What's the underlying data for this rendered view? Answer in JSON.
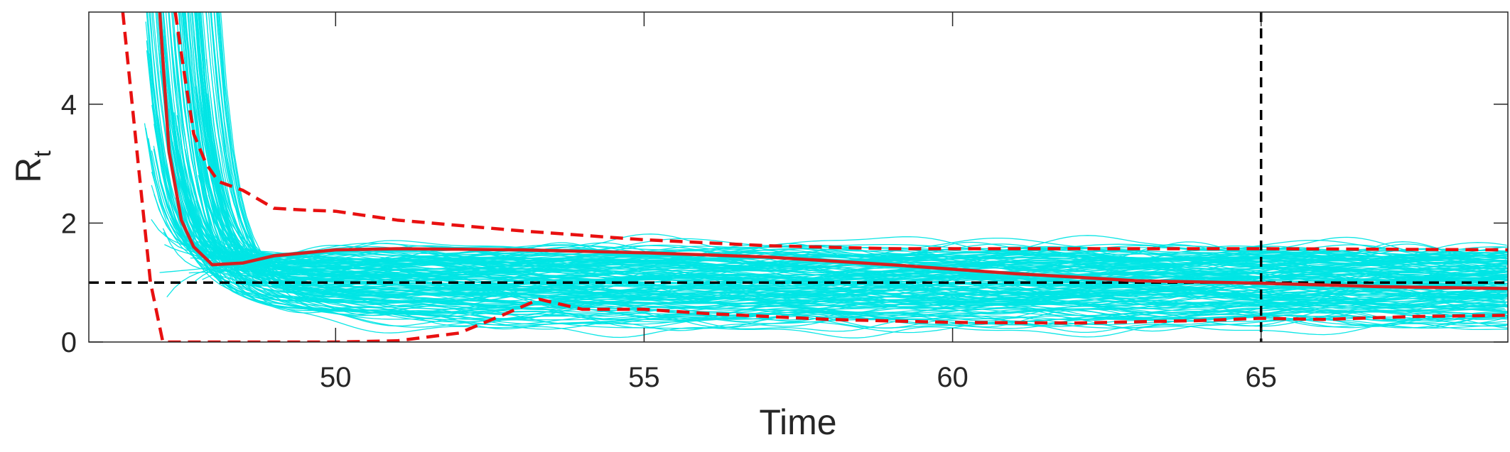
{
  "chart_data": {
    "type": "line",
    "title": "",
    "xlabel": "Time",
    "ylabel": "R",
    "ylabel_subscript": "t",
    "xlim": [
      46,
      69
    ],
    "ylim": [
      0,
      5.55
    ],
    "x_ticks": [
      50,
      55,
      60,
      65
    ],
    "y_ticks": [
      0,
      2,
      4
    ],
    "grid": false,
    "legend": "none",
    "colors": {
      "samples": "#00e5e5",
      "mean": "#d62020",
      "bounds": "#e81010",
      "reference": "#000000"
    },
    "reference_lines": {
      "horizontal_y": 1,
      "vertical_x": 65
    },
    "series": [
      {
        "style": "solid",
        "x": [
          47.15,
          47.3,
          47.5,
          47.7,
          48.0,
          48.5,
          49.0,
          50.0,
          51.0,
          52.0,
          53.0,
          55.0,
          57.0,
          59.0,
          61.0,
          63.0,
          65.0,
          67.0,
          69.0
        ],
        "y": [
          5.55,
          3.2,
          2.05,
          1.6,
          1.3,
          1.33,
          1.45,
          1.55,
          1.57,
          1.56,
          1.55,
          1.5,
          1.43,
          1.3,
          1.15,
          1.03,
          0.99,
          0.93,
          0.9
        ]
      },
      {
        "style": "dashed",
        "x": [
          47.4,
          47.55,
          47.7,
          47.9,
          48.1,
          48.5,
          49.0,
          49.5,
          50.0,
          51.0,
          53.0,
          55.0,
          57.0,
          59.0,
          61.0,
          63.0,
          65.0,
          67.0,
          69.0
        ],
        "y": [
          5.55,
          4.5,
          3.5,
          3.0,
          2.7,
          2.55,
          2.25,
          2.22,
          2.2,
          2.05,
          1.87,
          1.72,
          1.62,
          1.57,
          1.57,
          1.57,
          1.57,
          1.56,
          1.55
        ]
      },
      {
        "style": "dashed",
        "x": [
          46.55,
          46.8,
          47.0,
          47.2,
          49.0,
          50.0,
          51.0,
          52.0,
          52.7,
          53.3,
          54.0,
          55.0,
          56.0,
          58.0,
          60.0,
          62.0,
          64.0,
          65.0,
          66.0,
          67.5,
          69.0
        ],
        "y": [
          5.55,
          3.0,
          1.0,
          0.0,
          0.0,
          0.0,
          0.02,
          0.15,
          0.45,
          0.72,
          0.55,
          0.55,
          0.48,
          0.38,
          0.33,
          0.32,
          0.36,
          0.4,
          0.38,
          0.43,
          0.45
        ]
      }
    ]
  }
}
